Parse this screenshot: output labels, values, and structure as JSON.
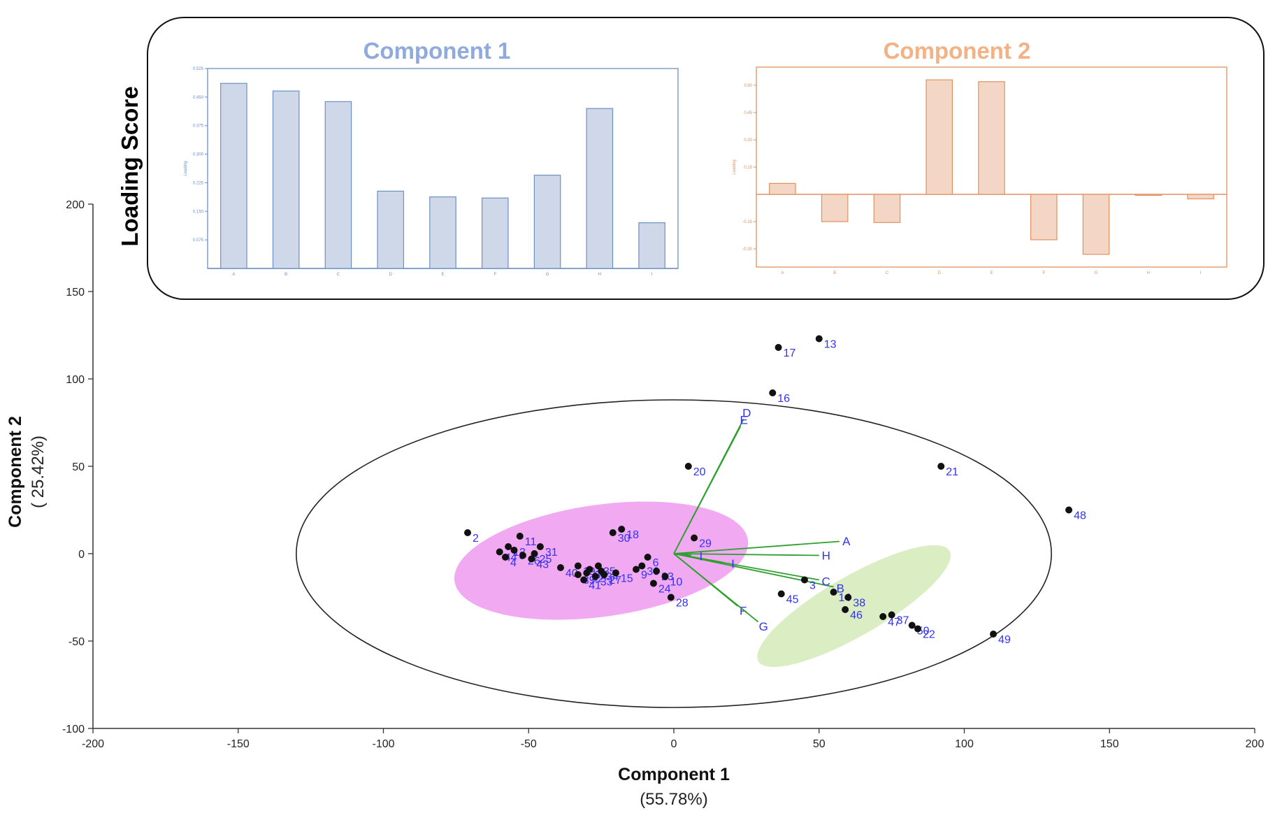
{
  "chart_data": [
    {
      "type": "scatter",
      "subtype": "pca-biplot",
      "xlabel": "Component 1",
      "xlabel_sub": "(55.78%)",
      "ylabel": "Component 2",
      "ylabel_sub": "( 25.42%)",
      "xlim": [
        -200,
        200
      ],
      "ylim": [
        -100,
        200
      ],
      "xticks": [
        -200,
        -150,
        -100,
        -50,
        0,
        50,
        100,
        150,
        200
      ],
      "yticks": [
        -100,
        -50,
        0,
        50,
        100,
        150,
        200
      ],
      "points": [
        {
          "label": "2",
          "x": -71,
          "y": 12
        },
        {
          "label": "44",
          "x": -60,
          "y": 1
        },
        {
          "label": "4",
          "x": -58,
          "y": -2
        },
        {
          "label": "12",
          "x": -57,
          "y": 4
        },
        {
          "label": "8",
          "x": -55,
          "y": 2
        },
        {
          "label": "11",
          "x": -53,
          "y": 10
        },
        {
          "label": "26",
          "x": -52,
          "y": -1
        },
        {
          "label": "43",
          "x": -49,
          "y": -3
        },
        {
          "label": "25",
          "x": -48,
          "y": 0
        },
        {
          "label": "31",
          "x": -46,
          "y": 4
        },
        {
          "label": "40",
          "x": -39,
          "y": -8
        },
        {
          "label": "19",
          "x": -33,
          "y": -7
        },
        {
          "label": "39",
          "x": -33,
          "y": -12
        },
        {
          "label": "41",
          "x": -31,
          "y": -15
        },
        {
          "label": "42",
          "x": -30,
          "y": -11
        },
        {
          "label": "32",
          "x": -29,
          "y": -9
        },
        {
          "label": "33",
          "x": -27,
          "y": -13
        },
        {
          "label": "34",
          "x": -25,
          "y": -10
        },
        {
          "label": "35",
          "x": -26,
          "y": -7
        },
        {
          "label": "27",
          "x": -24,
          "y": -12
        },
        {
          "label": "30",
          "x": -21,
          "y": 12
        },
        {
          "label": "18",
          "x": -18,
          "y": 14
        },
        {
          "label": "15",
          "x": -20,
          "y": -11
        },
        {
          "label": "9",
          "x": -13,
          "y": -9
        },
        {
          "label": "36",
          "x": -11,
          "y": -7
        },
        {
          "label": "6",
          "x": -9,
          "y": -2
        },
        {
          "label": "23",
          "x": -6,
          "y": -10
        },
        {
          "label": "24",
          "x": -7,
          "y": -17
        },
        {
          "label": "10",
          "x": -3,
          "y": -13
        },
        {
          "label": "28",
          "x": -1,
          "y": -25
        },
        {
          "label": "29",
          "x": 7,
          "y": 9
        },
        {
          "label": "20",
          "x": 5,
          "y": 50
        },
        {
          "label": "16",
          "x": 34,
          "y": 92
        },
        {
          "label": "17",
          "x": 36,
          "y": 118
        },
        {
          "label": "13",
          "x": 50,
          "y": 123
        },
        {
          "label": "21",
          "x": 92,
          "y": 50
        },
        {
          "label": "48",
          "x": 136,
          "y": 25
        },
        {
          "label": "49",
          "x": 110,
          "y": -46
        },
        {
          "label": "45",
          "x": 37,
          "y": -23
        },
        {
          "label": "3",
          "x": 45,
          "y": -15
        },
        {
          "label": "14",
          "x": 55,
          "y": -22
        },
        {
          "label": "38",
          "x": 60,
          "y": -25
        },
        {
          "label": "46",
          "x": 59,
          "y": -32
        },
        {
          "label": "47",
          "x": 72,
          "y": -36
        },
        {
          "label": "37",
          "x": 75,
          "y": -35
        },
        {
          "label": "50",
          "x": 82,
          "y": -41
        },
        {
          "label": "22",
          "x": 84,
          "y": -43
        }
      ],
      "loadings": [
        {
          "label": "A",
          "x": 57,
          "y": 7
        },
        {
          "label": "H",
          "x": 50,
          "y": -1
        },
        {
          "label": "B",
          "x": 55,
          "y": -19
        },
        {
          "label": "C",
          "x": 50,
          "y": -15
        },
        {
          "label": "D",
          "x": 24,
          "y": 77
        },
        {
          "label": "E",
          "x": 23,
          "y": 73
        },
        {
          "label": "F",
          "x": 22,
          "y": -30
        },
        {
          "label": "G",
          "x": 29,
          "y": -39
        },
        {
          "label": "I",
          "x": 17,
          "y": -5
        },
        {
          "label": "I",
          "x": 6,
          "y": -1
        }
      ],
      "ellipses": [
        {
          "name": "confidence",
          "cx": 0,
          "cy": 0,
          "rx": 130,
          "ry": 88,
          "angle": 0
        },
        {
          "name": "group-magenta",
          "cx": -25,
          "cy": -4,
          "rx": 51,
          "ry": 32,
          "angle": -8
        },
        {
          "name": "group-green",
          "cx": 62,
          "cy": -30,
          "rx": 38,
          "ry": 17,
          "angle": -30
        }
      ]
    },
    {
      "type": "bar",
      "title": "Component 1",
      "ylabel": "Loading",
      "categories": [
        "A",
        "B",
        "C",
        "D",
        "E",
        "F",
        "G",
        "H",
        "I"
      ],
      "values": [
        0.486,
        0.466,
        0.438,
        0.203,
        0.188,
        0.185,
        0.245,
        0.42,
        0.12
      ],
      "ylim": [
        0,
        0.525
      ],
      "yticks": [
        "0.075",
        "0.150",
        "0.225",
        "0.300",
        "0.375",
        "0.450",
        "0.525"
      ]
    },
    {
      "type": "bar",
      "title": "Component 2",
      "ylabel": "Loading",
      "categories": [
        "A",
        "B",
        "C",
        "D",
        "E",
        "F",
        "G",
        "H",
        "I"
      ],
      "values": [
        0.06,
        -0.15,
        -0.155,
        0.63,
        0.62,
        -0.25,
        -0.33,
        -0.005,
        -0.025
      ],
      "ylim": [
        -0.4,
        0.7
      ],
      "yticks": [
        "0.60",
        "0.45",
        "0.30",
        "0.15",
        "-0.15",
        "-0.30"
      ]
    }
  ],
  "loading_panel": {
    "heading": "Loading Score"
  },
  "colors": {
    "bar1_fill": "#cfd8e9",
    "bar1_stroke": "#6d8fc4",
    "title1": "#8faadc",
    "bar2_fill": "#f3d6c6",
    "bar2_stroke": "#e0915f",
    "title2": "#f4b183",
    "point": "#111111",
    "point_label": "#3333ee",
    "vector": "#2ea02e",
    "group1": "#ef9bef",
    "group2": "#d4eab8"
  }
}
